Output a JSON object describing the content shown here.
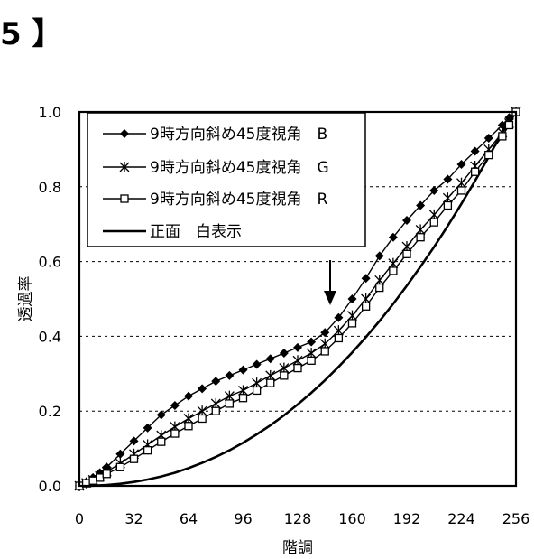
{
  "figure_label": "5 】",
  "chart_data": {
    "type": "line",
    "title": "",
    "xlabel": "階調",
    "ylabel": "透過率",
    "xlim": [
      0,
      256
    ],
    "ylim": [
      0,
      1.0
    ],
    "xticks": [
      0,
      32,
      64,
      96,
      128,
      160,
      192,
      224,
      256
    ],
    "yticks": [
      0.0,
      0.2,
      0.4,
      0.6,
      0.8,
      1.0
    ],
    "xtick_labels": [
      "0",
      "32",
      "64",
      "96",
      "128",
      "160",
      "192",
      "224",
      "256"
    ],
    "ytick_labels": [
      "0.0",
      "0.2",
      "0.4",
      "0.6",
      "0.8",
      "1.0"
    ],
    "grid": "horizontal dashed",
    "legend_position": "top-left",
    "annotation": "downward arrow near x=148",
    "series": [
      {
        "name": "9時方向斜め45度視角　B",
        "marker": "diamond",
        "x": [
          0,
          4,
          8,
          12,
          16,
          24,
          32,
          40,
          48,
          56,
          64,
          72,
          80,
          88,
          96,
          104,
          112,
          120,
          128,
          136,
          144,
          152,
          160,
          168,
          176,
          184,
          192,
          200,
          208,
          216,
          224,
          232,
          240,
          248,
          252,
          256
        ],
        "y": [
          0.0,
          0.01,
          0.022,
          0.035,
          0.05,
          0.085,
          0.12,
          0.155,
          0.19,
          0.215,
          0.24,
          0.26,
          0.28,
          0.295,
          0.31,
          0.325,
          0.34,
          0.355,
          0.37,
          0.385,
          0.41,
          0.45,
          0.5,
          0.555,
          0.615,
          0.665,
          0.71,
          0.75,
          0.79,
          0.82,
          0.86,
          0.895,
          0.93,
          0.965,
          0.985,
          1.0
        ]
      },
      {
        "name": "9時方向斜め45度視角　G",
        "marker": "asterisk",
        "x": [
          0,
          4,
          8,
          12,
          16,
          24,
          32,
          40,
          48,
          56,
          64,
          72,
          80,
          88,
          96,
          104,
          112,
          120,
          128,
          136,
          144,
          152,
          160,
          168,
          176,
          184,
          192,
          200,
          208,
          216,
          224,
          232,
          240,
          248,
          252,
          256
        ],
        "y": [
          0.0,
          0.008,
          0.016,
          0.026,
          0.038,
          0.06,
          0.085,
          0.11,
          0.135,
          0.158,
          0.18,
          0.2,
          0.22,
          0.24,
          0.255,
          0.275,
          0.295,
          0.315,
          0.335,
          0.355,
          0.38,
          0.415,
          0.455,
          0.5,
          0.55,
          0.595,
          0.64,
          0.685,
          0.725,
          0.77,
          0.81,
          0.855,
          0.9,
          0.945,
          0.97,
          1.0
        ]
      },
      {
        "name": "9時方向斜め45度視角　R",
        "marker": "square",
        "x": [
          0,
          4,
          8,
          12,
          16,
          24,
          32,
          40,
          48,
          56,
          64,
          72,
          80,
          88,
          96,
          104,
          112,
          120,
          128,
          136,
          144,
          152,
          160,
          168,
          176,
          184,
          192,
          200,
          208,
          216,
          224,
          232,
          240,
          248,
          252,
          256
        ],
        "y": [
          0.0,
          0.007,
          0.014,
          0.022,
          0.032,
          0.05,
          0.072,
          0.095,
          0.118,
          0.14,
          0.16,
          0.18,
          0.2,
          0.22,
          0.235,
          0.255,
          0.275,
          0.295,
          0.315,
          0.335,
          0.36,
          0.395,
          0.435,
          0.48,
          0.53,
          0.575,
          0.62,
          0.665,
          0.705,
          0.75,
          0.79,
          0.84,
          0.885,
          0.935,
          0.965,
          1.0
        ]
      },
      {
        "name": "正面　白表示",
        "marker": "none",
        "gamma": 2.2,
        "x": [
          0,
          8,
          16,
          24,
          32,
          40,
          48,
          56,
          64,
          72,
          80,
          88,
          96,
          104,
          112,
          120,
          128,
          136,
          144,
          152,
          160,
          168,
          176,
          184,
          192,
          200,
          208,
          216,
          224,
          232,
          240,
          248,
          256
        ],
        "y": [
          0.0,
          0.0005,
          0.0023,
          0.0055,
          0.0103,
          0.0168,
          0.025,
          0.0351,
          0.0474,
          0.0613,
          0.0772,
          0.0951,
          0.1155,
          0.1376,
          0.1621,
          0.1887,
          0.2176,
          0.2487,
          0.2824,
          0.3184,
          0.3568,
          0.3976,
          0.441,
          0.4867,
          0.5352,
          0.5861,
          0.6394,
          0.6955,
          0.7544,
          0.8158,
          0.8796,
          0.9468,
          1.0
        ]
      }
    ]
  }
}
